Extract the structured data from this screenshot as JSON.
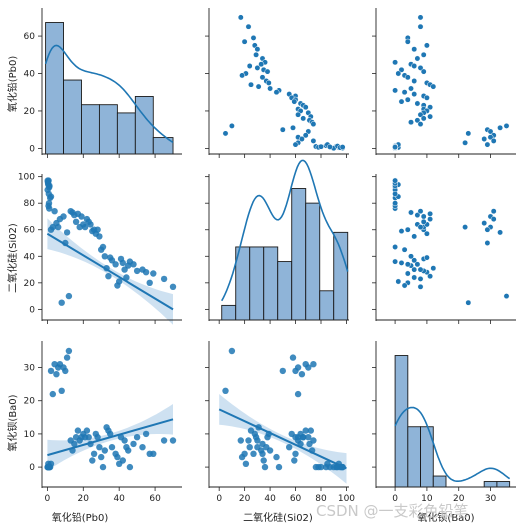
{
  "watermark": "CSDN @一支彩色铅笔",
  "colors": {
    "point": "#1f77b4",
    "hist_fill": "#8fb4d8",
    "hist_edge": "#1a1a1a",
    "band": "#a6c8e6"
  },
  "chart_data": {
    "type": "pairplot",
    "variables": [
      {
        "key": "pbo",
        "label": "氧化铅(Pb0)",
        "lim": [
          -3,
          75
        ],
        "ticks": [
          0,
          20,
          40,
          60
        ]
      },
      {
        "key": "sio2",
        "label": "二氧化硅(Si02)",
        "lim": [
          -8,
          102
        ],
        "ticks": [
          0,
          20,
          40,
          60,
          80,
          100
        ]
      },
      {
        "key": "bao",
        "label": "氧化钡(Ba0)",
        "lim": [
          -6,
          38
        ],
        "ticks": [
          0,
          10,
          20,
          30
        ]
      }
    ],
    "samples": {
      "pbo": [
        70,
        65,
        59,
        57,
        55,
        53,
        50,
        48,
        46,
        45,
        44,
        43,
        42,
        41,
        40,
        39,
        38,
        36,
        35,
        34,
        33,
        32,
        31,
        30,
        29,
        28,
        27,
        26,
        25,
        24,
        23,
        22,
        21,
        20,
        19,
        18,
        17,
        16,
        15,
        14,
        13,
        12,
        11,
        10,
        9,
        8,
        7,
        6,
        5,
        4,
        3,
        2,
        1,
        1,
        0.5,
        0.3,
        0.2,
        0.1,
        1.5,
        2,
        0.8,
        1.2,
        0.4,
        0.6,
        0.9,
        0.7
      ],
      "sio2": [
        17,
        23,
        27,
        20,
        28,
        30,
        29,
        34,
        36,
        33,
        24,
        30,
        35,
        38,
        21,
        18,
        34,
        37,
        39,
        25,
        31,
        40,
        47,
        45,
        55,
        60,
        57,
        60,
        59,
        64,
        66,
        68,
        62,
        64,
        70,
        62,
        72,
        66,
        71,
        73,
        74,
        10,
        58,
        50,
        70,
        5,
        68,
        62,
        65,
        74,
        62,
        60,
        76,
        92,
        94,
        96,
        97,
        90,
        84,
        85,
        87,
        93,
        95,
        78,
        80,
        97
      ],
      "bao": [
        8,
        8,
        4,
        4,
        10,
        6,
        9,
        7,
        0,
        5,
        6,
        8,
        2,
        9,
        1,
        3,
        4,
        6,
        10,
        11,
        12,
        5,
        0,
        3,
        6,
        9,
        10,
        4,
        2,
        7,
        9,
        11,
        9,
        10,
        9,
        8,
        11,
        9,
        7,
        5,
        8,
        35,
        33,
        29,
        30,
        23,
        31,
        30,
        28,
        31,
        22,
        29,
        0,
        0,
        1,
        0,
        0,
        0,
        0,
        1,
        0,
        0,
        0,
        0,
        0,
        0
      ]
    },
    "hist": {
      "pbo": {
        "edges": [
          -1,
          9,
          19,
          29,
          39,
          49,
          59,
          70
        ],
        "counts": [
          16,
          9,
          6,
          6,
          5,
          7,
          2
        ]
      },
      "sio2": {
        "edges": [
          2,
          13,
          24,
          35,
          46,
          57,
          68,
          79,
          90,
          101
        ],
        "counts": [
          1,
          5,
          5,
          5,
          4,
          9,
          8,
          2,
          6
        ]
      },
      "bao": {
        "edges": [
          0,
          4,
          8,
          12,
          16,
          20,
          24,
          28,
          32,
          36
        ],
        "counts": [
          24,
          11,
          11,
          2,
          0,
          0,
          0,
          1,
          1
        ]
      }
    },
    "regression": {
      "sio2_vs_pbo": {
        "x": [
          0,
          70
        ],
        "y": [
          57,
          0
        ]
      },
      "bao_vs_pbo": {
        "x": [
          0,
          70
        ],
        "y": [
          3.6,
          14.4
        ]
      },
      "bao_vs_sio2": {
        "x": [
          0,
          100
        ],
        "y": [
          17.4,
          -0.4
        ]
      }
    }
  }
}
